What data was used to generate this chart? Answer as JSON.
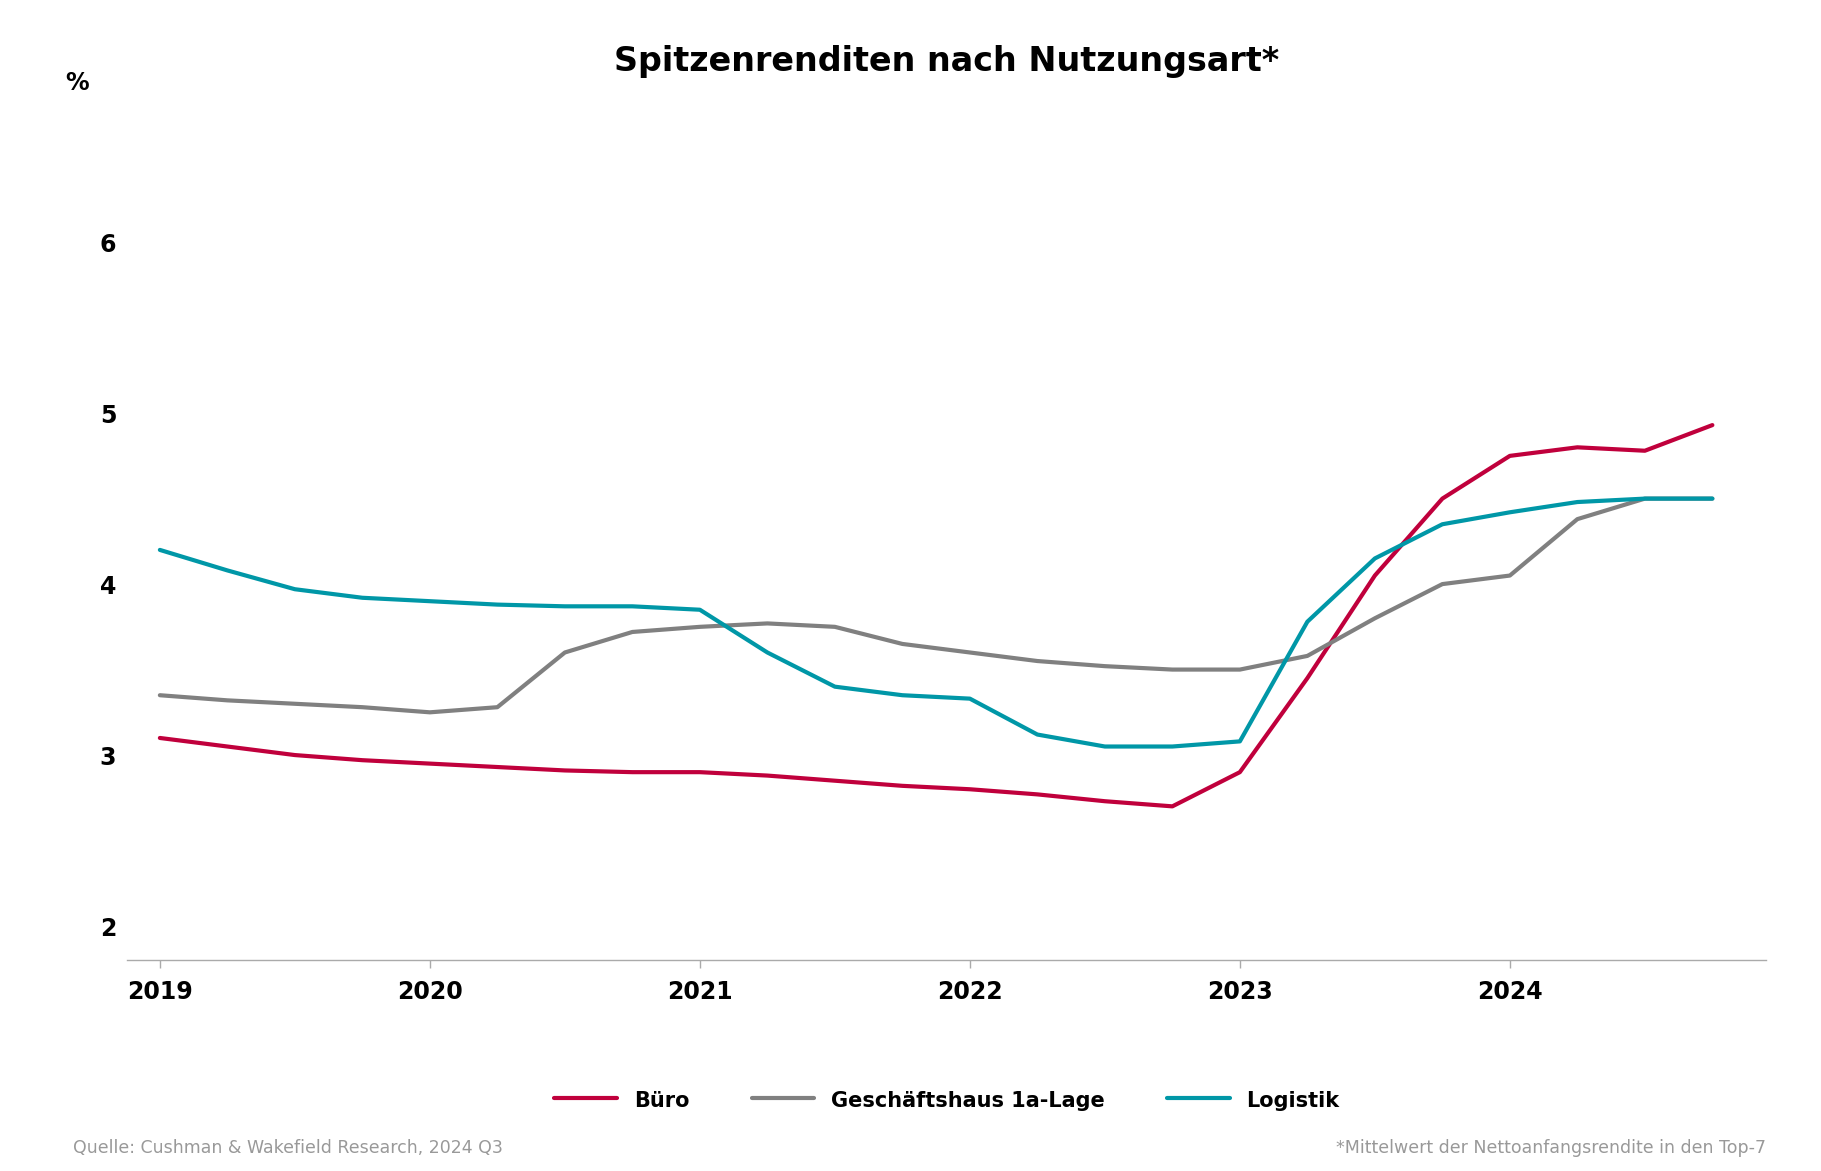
{
  "title": "Spitzenrenditen nach Nutzungsart*",
  "ylabel": "%",
  "ylim": [
    1.8,
    6.8
  ],
  "yticks": [
    2,
    3,
    4,
    5,
    6
  ],
  "source_left": "Quelle: Cushman & Wakefield Research, 2024 Q3",
  "source_right": "*Mittelwert der Nettoanfangsrendite in den Top-7",
  "background_color": "#ffffff",
  "series": {
    "buero": {
      "label": "Büro",
      "color": "#c0003c",
      "linewidth": 3.0,
      "x": [
        2019.0,
        2019.25,
        2019.5,
        2019.75,
        2020.0,
        2020.25,
        2020.5,
        2020.75,
        2021.0,
        2021.25,
        2021.5,
        2021.75,
        2022.0,
        2022.25,
        2022.5,
        2022.75,
        2023.0,
        2023.25,
        2023.5,
        2023.75,
        2024.0,
        2024.25,
        2024.5,
        2024.75
      ],
      "y": [
        3.1,
        3.05,
        3.0,
        2.97,
        2.95,
        2.93,
        2.91,
        2.9,
        2.9,
        2.88,
        2.85,
        2.82,
        2.8,
        2.77,
        2.73,
        2.7,
        2.9,
        3.45,
        4.05,
        4.5,
        4.75,
        4.8,
        4.78,
        4.93
      ]
    },
    "geschaeftshaus": {
      "label": "Geschäftshaus 1a-Lage",
      "color": "#808080",
      "linewidth": 3.0,
      "x": [
        2019.0,
        2019.25,
        2019.5,
        2019.75,
        2020.0,
        2020.25,
        2020.5,
        2020.75,
        2021.0,
        2021.25,
        2021.5,
        2021.75,
        2022.0,
        2022.25,
        2022.5,
        2022.75,
        2023.0,
        2023.25,
        2023.5,
        2023.75,
        2024.0,
        2024.25,
        2024.5,
        2024.75
      ],
      "y": [
        3.35,
        3.32,
        3.3,
        3.28,
        3.25,
        3.28,
        3.6,
        3.72,
        3.75,
        3.77,
        3.75,
        3.65,
        3.6,
        3.55,
        3.52,
        3.5,
        3.5,
        3.58,
        3.8,
        4.0,
        4.05,
        4.38,
        4.5,
        4.5
      ]
    },
    "logistik": {
      "label": "Logistik",
      "color": "#0097a7",
      "linewidth": 3.0,
      "x": [
        2019.0,
        2019.25,
        2019.5,
        2019.75,
        2020.0,
        2020.25,
        2020.5,
        2020.75,
        2021.0,
        2021.25,
        2021.5,
        2021.75,
        2022.0,
        2022.25,
        2022.5,
        2022.75,
        2023.0,
        2023.25,
        2023.5,
        2023.75,
        2024.0,
        2024.25,
        2024.5,
        2024.75
      ],
      "y": [
        4.2,
        4.08,
        3.97,
        3.92,
        3.9,
        3.88,
        3.87,
        3.87,
        3.85,
        3.6,
        3.4,
        3.35,
        3.33,
        3.12,
        3.05,
        3.05,
        3.08,
        3.78,
        4.15,
        4.35,
        4.42,
        4.48,
        4.5,
        4.5
      ]
    }
  },
  "xticks": [
    2019,
    2020,
    2021,
    2022,
    2023,
    2024
  ],
  "xlim": [
    2018.88,
    2024.95
  ],
  "legend_fontsize": 15,
  "title_fontsize": 24,
  "tick_fontsize": 17,
  "source_fontsize": 12.5,
  "border_color": "#aaaaaa"
}
